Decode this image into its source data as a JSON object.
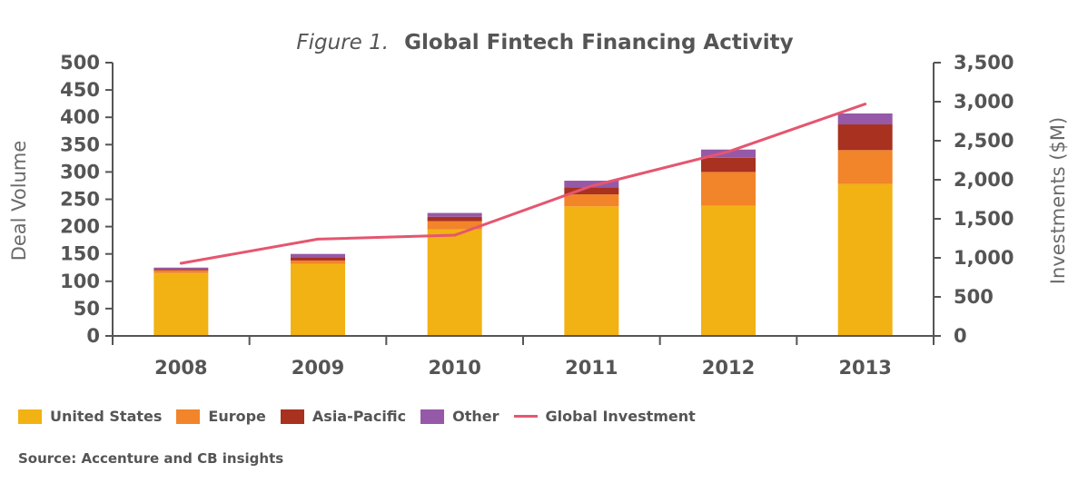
{
  "chart_data": {
    "type": "bar",
    "stacked": true,
    "title_prefix": "Figure 1.",
    "title": "Global Fintech Financing Activity",
    "categories": [
      "2008",
      "2009",
      "2010",
      "2011",
      "2012",
      "2013"
    ],
    "series": [
      {
        "name": "United States",
        "color": "#f2b213",
        "values": [
          115,
          132,
          195,
          237,
          238,
          278
        ]
      },
      {
        "name": "Europe",
        "color": "#f2842a",
        "values": [
          5,
          6,
          15,
          22,
          62,
          62
        ]
      },
      {
        "name": "Asia-Pacific",
        "color": "#a8311f",
        "values": [
          2,
          6,
          8,
          13,
          26,
          47
        ]
      },
      {
        "name": "Other",
        "color": "#9659a8",
        "values": [
          3,
          6,
          7,
          12,
          15,
          20
        ]
      }
    ],
    "line_series": {
      "name": "Global Investment",
      "color": "#e5566f",
      "axis": "right",
      "values": [
        930,
        1240,
        1290,
        1920,
        2360,
        2970
      ]
    },
    "ylabel": "Deal Volume",
    "ylim": [
      0,
      500
    ],
    "yticks": [
      "0",
      "50",
      "100",
      "150",
      "200",
      "250",
      "300",
      "350",
      "400",
      "450",
      "500"
    ],
    "y2label": "Investments ($M)",
    "y2lim": [
      0,
      3500
    ],
    "y2ticks": [
      "0",
      "500",
      "1,000",
      "1,500",
      "2,000",
      "2,500",
      "3,000",
      "3,500"
    ],
    "grid": false,
    "legend_position": "bottom-left",
    "source": "Source: Accenture and CB insights"
  }
}
